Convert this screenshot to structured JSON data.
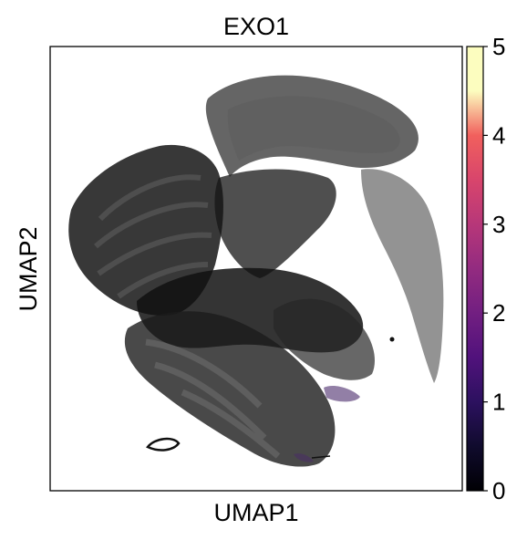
{
  "chart_data": {
    "type": "scatter",
    "title": "EXO1",
    "xlabel": "UMAP1",
    "ylabel": "UMAP2",
    "grid": false,
    "axis_ticks_shown": false,
    "point_color": "#000000",
    "colorbar": {
      "colormap": "magma",
      "range": [
        0,
        5
      ],
      "ticks": [
        0,
        1,
        2,
        3,
        4,
        5
      ],
      "tick_labels": [
        "0",
        "1",
        "2",
        "3",
        "4",
        "5"
      ],
      "stops": [
        {
          "value": 0.0,
          "color": "#000004"
        },
        {
          "value": 0.5,
          "color": "#100b2d"
        },
        {
          "value": 1.0,
          "color": "#2c115f"
        },
        {
          "value": 1.5,
          "color": "#51127c"
        },
        {
          "value": 2.0,
          "color": "#721f81"
        },
        {
          "value": 2.5,
          "color": "#932b80"
        },
        {
          "value": 3.0,
          "color": "#b73779"
        },
        {
          "value": 3.5,
          "color": "#d8456c"
        },
        {
          "value": 4.0,
          "color": "#f1605d"
        },
        {
          "value": 4.5,
          "color": "#fcfdbf"
        },
        {
          "value": 5.0,
          "color": "#fcfdbf"
        }
      ]
    }
  }
}
